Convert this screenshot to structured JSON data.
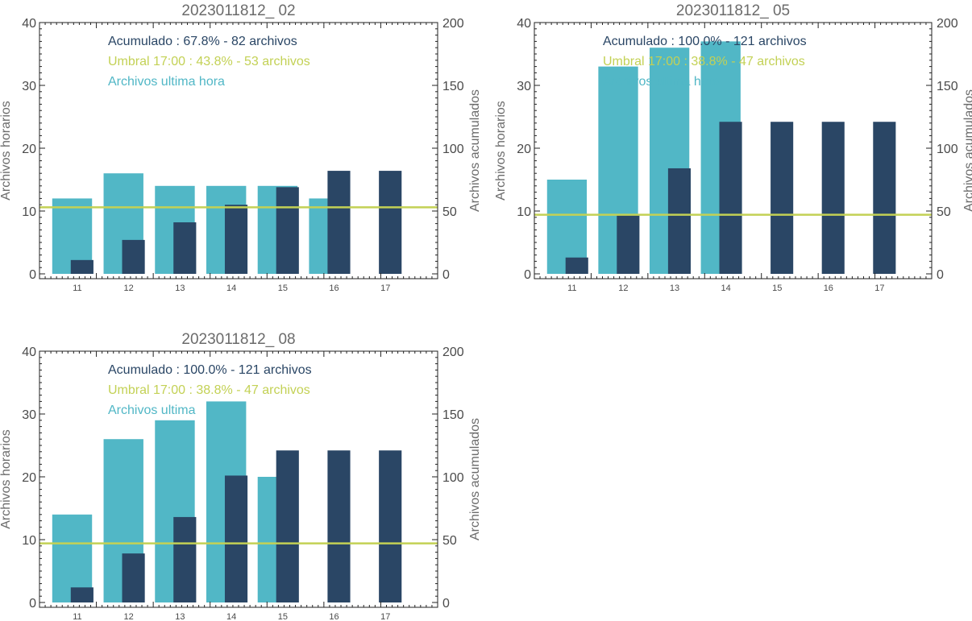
{
  "colors": {
    "hourly": "#51b7c6",
    "cumulative": "#2a4665",
    "threshold": "#c3d155",
    "axis": "#222222"
  },
  "chart_data": [
    {
      "type": "bar",
      "title": "2023011812_ 02",
      "ylabel": "Archivos horarios",
      "y2label": "Archivos acumulados",
      "categories": [
        "11",
        "12",
        "13",
        "14",
        "15",
        "16",
        "17"
      ],
      "ylim": [
        0,
        40
      ],
      "y2lim": [
        0,
        200
      ],
      "yticks": [
        "0",
        "10",
        "20",
        "30",
        "40"
      ],
      "y2ticks": [
        "0",
        "50",
        "100",
        "150",
        "200"
      ],
      "series": [
        {
          "name": "Archivos ultima hora",
          "axis": "left",
          "values": [
            12,
            16,
            14,
            14,
            14,
            12,
            null
          ]
        },
        {
          "axis": "right",
          "values": [
            11,
            27,
            41,
            55,
            69,
            82,
            82
          ]
        }
      ],
      "threshold": 53,
      "legend": [
        "Acumulado : 67.8% - 82 archivos",
        "Umbral 17:00 : 43.8% - 53 archivos",
        "Archivos ultima hora"
      ]
    },
    {
      "type": "bar",
      "title": "2023011812_ 05",
      "ylabel": "Archivos horarios",
      "y2label": "Archivos acumulados",
      "categories": [
        "11",
        "12",
        "13",
        "14",
        "15",
        "16",
        "17"
      ],
      "ylim": [
        0,
        40
      ],
      "y2lim": [
        0,
        200
      ],
      "yticks": [
        "0",
        "10",
        "20",
        "30",
        "40"
      ],
      "y2ticks": [
        "0",
        "50",
        "100",
        "150",
        "200"
      ],
      "series": [
        {
          "name": "Archivos ultima hora",
          "axis": "left",
          "values": [
            15,
            33,
            36,
            37,
            null,
            null,
            null
          ]
        },
        {
          "axis": "right",
          "values": [
            13,
            47,
            84,
            121,
            121,
            121,
            121
          ]
        }
      ],
      "threshold": 47,
      "legend": [
        "Acumulado : 100.0% - 121 archivos",
        "Umbral 17:00 : 38.8% - 47 archivos",
        "Archivos ultima hora"
      ]
    },
    {
      "type": "bar",
      "title": "2023011812_ 08",
      "ylabel": "Archivos horarios",
      "y2label": "Archivos acumulados",
      "categories": [
        "11",
        "12",
        "13",
        "14",
        "15",
        "16",
        "17"
      ],
      "ylim": [
        0,
        40
      ],
      "y2lim": [
        0,
        200
      ],
      "yticks": [
        "0",
        "10",
        "20",
        "30",
        "40"
      ],
      "y2ticks": [
        "0",
        "50",
        "100",
        "150",
        "200"
      ],
      "series": [
        {
          "name": "Archivos ultima hora",
          "axis": "left",
          "values": [
            14,
            26,
            29,
            32,
            20,
            null,
            null
          ]
        },
        {
          "axis": "right",
          "values": [
            12,
            39,
            68,
            101,
            121,
            121,
            121
          ]
        }
      ],
      "threshold": 47,
      "legend": [
        "Acumulado : 100.0% - 121 archivos",
        "Umbral 17:00 : 38.8% - 47 archivos",
        "Archivos ultima"
      ]
    }
  ]
}
